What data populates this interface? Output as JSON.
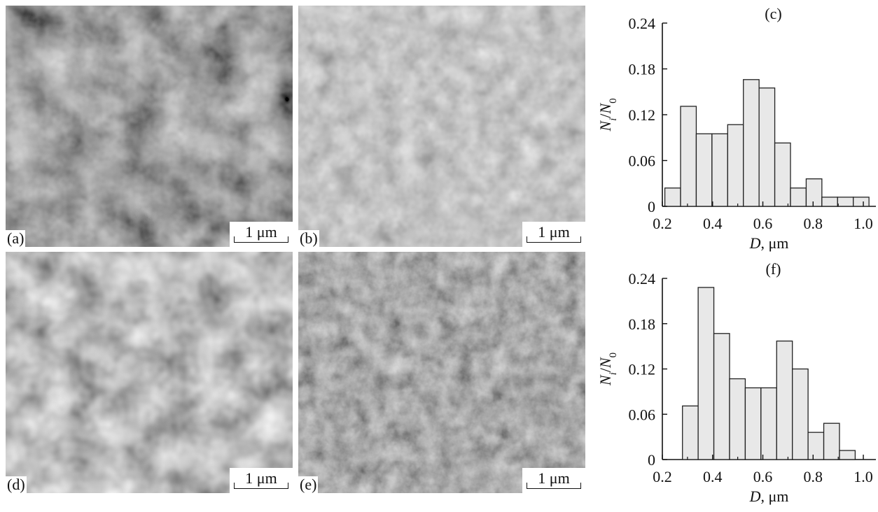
{
  "panels": {
    "a": {
      "label": "(a)",
      "scale": "1 μm"
    },
    "b": {
      "label": "(b)",
      "scale": "1 μm"
    },
    "d": {
      "label": "(d)",
      "scale": "1 μm"
    },
    "e": {
      "label": "(e)",
      "scale": "1 μm"
    }
  },
  "chart_data": [
    {
      "type": "bar",
      "title": "(c)",
      "xlabel_italic": "D",
      "xlabel_rest": ", μm",
      "ylabel": "Ni/N0",
      "xlim": [
        0.2,
        1.05
      ],
      "ylim": [
        0,
        0.24
      ],
      "xticks": [
        "0.2",
        "0.4",
        "0.6",
        "0.8",
        "1.0"
      ],
      "yticks": [
        "0",
        "0.06",
        "0.12",
        "0.18",
        "0.24"
      ],
      "bin_width": 0.0625,
      "bin_starts": [
        0.21,
        0.2725,
        0.335,
        0.3975,
        0.46,
        0.5225,
        0.585,
        0.6475,
        0.71,
        0.7725,
        0.835,
        0.8975,
        0.96
      ],
      "values": [
        0.024,
        0.131,
        0.095,
        0.095,
        0.107,
        0.166,
        0.155,
        0.083,
        0.024,
        0.036,
        0.012,
        0.012,
        0.012
      ]
    },
    {
      "type": "bar",
      "title": "(f)",
      "xlabel_italic": "D",
      "xlabel_rest": ", μm",
      "ylabel": "Ni/N0",
      "xlim": [
        0.2,
        1.05
      ],
      "ylim": [
        0,
        0.24
      ],
      "xticks": [
        "0.2",
        "0.4",
        "0.6",
        "0.8",
        "1.0"
      ],
      "yticks": [
        "0",
        "0.06",
        "0.12",
        "0.18",
        "0.24"
      ],
      "bin_width": 0.0625,
      "bin_starts": [
        0.28,
        0.3425,
        0.405,
        0.4675,
        0.53,
        0.5925,
        0.655,
        0.7175,
        0.78,
        0.8425,
        0.905,
        0.9675
      ],
      "values": [
        0.071,
        0.228,
        0.167,
        0.107,
        0.095,
        0.095,
        0.157,
        0.12,
        0.036,
        0.048,
        0.012,
        0.0
      ]
    }
  ]
}
